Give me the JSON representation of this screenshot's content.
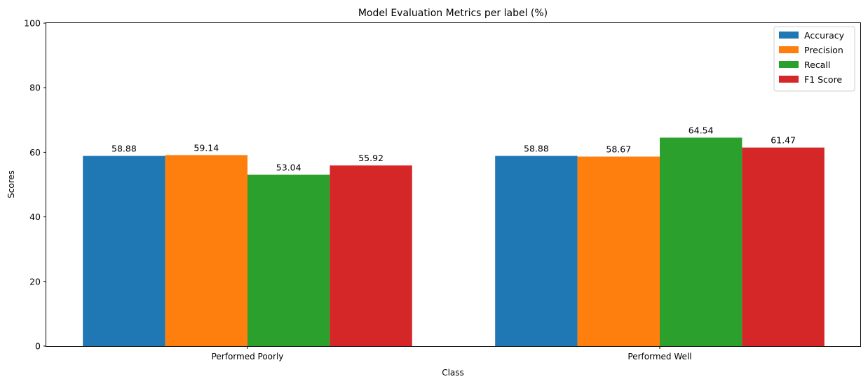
{
  "chart_data": {
    "type": "bar",
    "title": "Model Evaluation Metrics per label (%)",
    "xlabel": "Class",
    "ylabel": "Scores",
    "categories": [
      "Performed Poorly",
      "Performed Well"
    ],
    "series": [
      {
        "name": "Accuracy",
        "color": "#1f77b4",
        "values": [
          58.88,
          58.88
        ]
      },
      {
        "name": "Precision",
        "color": "#ff7f0e",
        "values": [
          59.14,
          58.67
        ]
      },
      {
        "name": "Recall",
        "color": "#2ca02c",
        "values": [
          53.04,
          64.54
        ]
      },
      {
        "name": "F1 Score",
        "color": "#d62728",
        "values": [
          55.92,
          61.47
        ]
      }
    ],
    "ylim": [
      0,
      100
    ],
    "yticks": [
      0,
      20,
      40,
      60,
      80,
      100
    ],
    "grid": false,
    "legend_position": "top-right",
    "data_labels": true
  }
}
